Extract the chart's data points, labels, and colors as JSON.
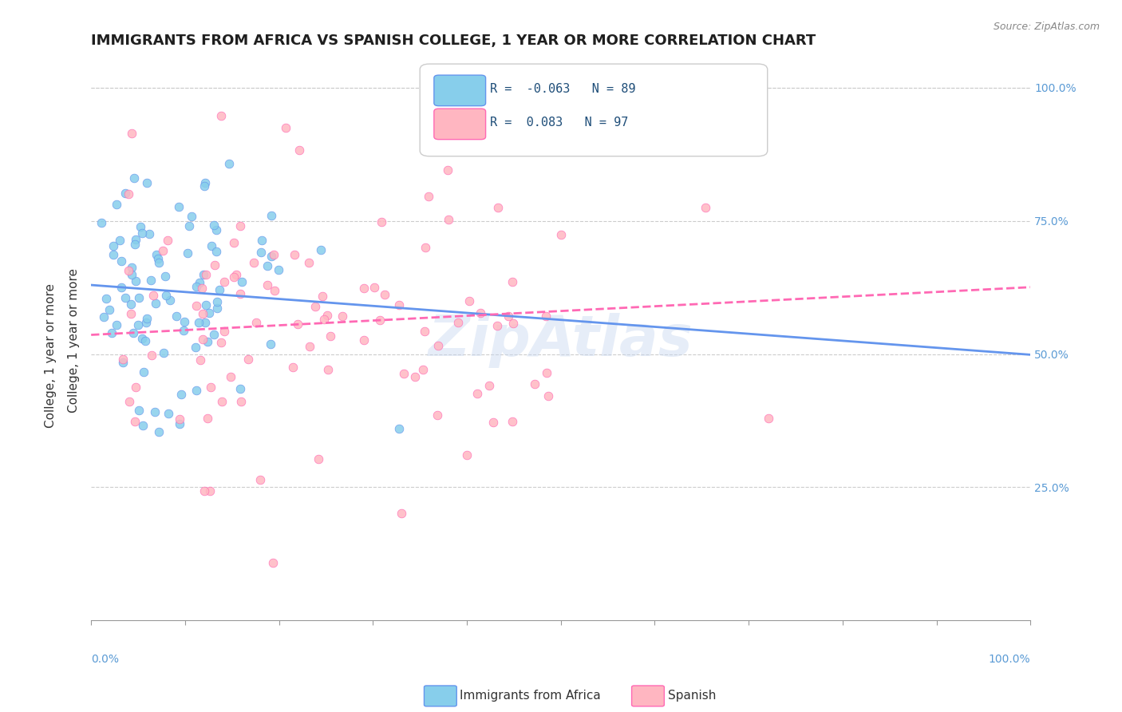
{
  "title": "IMMIGRANTS FROM AFRICA VS SPANISH COLLEGE, 1 YEAR OR MORE CORRELATION CHART",
  "source": "Source: ZipAtlas.com",
  "xlabel": "",
  "ylabel": "College, 1 year or more",
  "xlim": [
    0.0,
    1.0
  ],
  "ylim": [
    0.0,
    1.05
  ],
  "ytick_labels": [
    "25.0%",
    "50.0%",
    "75.0%",
    "100.0%"
  ],
  "ytick_values": [
    0.25,
    0.5,
    0.75,
    1.0
  ],
  "xtick_labels": [
    "0.0%",
    "100.0%"
  ],
  "legend_r1": "R = -0.063",
  "legend_n1": "N = 89",
  "legend_r2": "R =  0.083",
  "legend_n2": "N = 97",
  "color_blue": "#87CEEB",
  "color_pink": "#FFB6C1",
  "color_blue_line": "#6495ED",
  "color_pink_line": "#FF69B4",
  "color_blue_dark": "#4472C4",
  "color_pink_dark": "#FF69B4",
  "watermark": "ZipAtlas",
  "seed_blue": 42,
  "seed_pink": 7,
  "n_blue": 89,
  "n_pink": 97,
  "r_blue": -0.063,
  "r_pink": 0.083,
  "title_fontsize": 13,
  "axis_label_fontsize": 11,
  "tick_fontsize": 10,
  "legend_fontsize": 11,
  "source_fontsize": 9
}
